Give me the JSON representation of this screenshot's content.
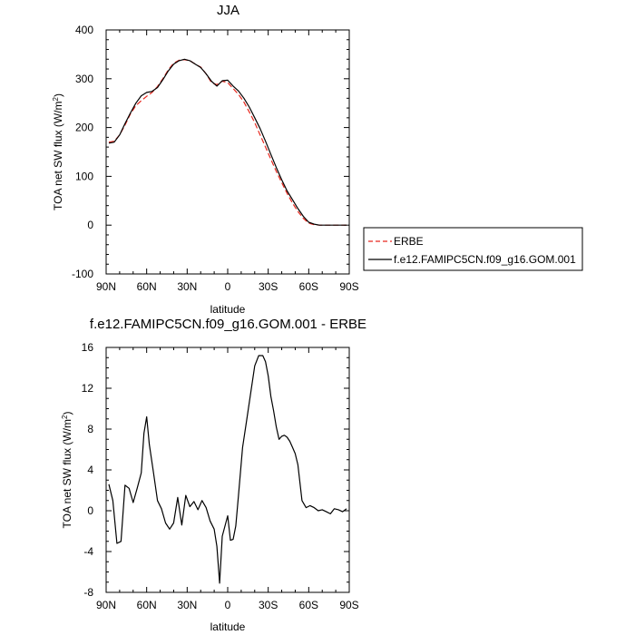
{
  "colors": {
    "erbe": "#e8281e",
    "model": "#000000",
    "axis": "#000000",
    "legend_border": "#000000"
  },
  "chart_data": [
    {
      "type": "line",
      "title": "JJA",
      "xlabel": "latitude",
      "ylabel": "TOA net SW flux (W/m",
      "ylabel_sup": "2",
      "ylabel_close": ")",
      "xlim": [
        90,
        -90
      ],
      "ylim": [
        -100,
        400
      ],
      "xticks": [
        90,
        60,
        30,
        0,
        -30,
        -60,
        -90
      ],
      "xtick_labels": [
        "90N",
        "60N",
        "30N",
        "0",
        "30S",
        "60S",
        "90S"
      ],
      "yticks": [
        -100,
        0,
        100,
        200,
        300,
        400
      ],
      "ytick_labels": [
        "-100",
        "0",
        "100",
        "200",
        "300",
        "400"
      ],
      "legend_position": "right-bottom",
      "series": [
        {
          "name": "ERBE",
          "style": "dashed",
          "x": [
            88,
            84,
            80,
            76,
            72,
            68,
            64,
            60,
            56,
            52,
            48,
            44,
            40,
            36,
            32,
            28,
            24,
            20,
            16,
            12,
            8,
            4,
            0,
            -4,
            -8,
            -12,
            -16,
            -20,
            -24,
            -28,
            -32,
            -36,
            -40,
            -44,
            -48,
            -52,
            -56,
            -60,
            -64,
            -68,
            -72,
            -76,
            -80,
            -84,
            -88
          ],
          "y": [
            170,
            172,
            185,
            205,
            228,
            245,
            255,
            264,
            272,
            284,
            300,
            318,
            332,
            338,
            339,
            337,
            330,
            324,
            310,
            292,
            288,
            295,
            292,
            280,
            268,
            252,
            232,
            210,
            185,
            160,
            135,
            110,
            87,
            65,
            45,
            28,
            14,
            4,
            1,
            0,
            0,
            0,
            0,
            0,
            0
          ]
        },
        {
          "name": "f.e12.FAMIPC5CN.f09_g16.GOM.001",
          "style": "solid",
          "x": [
            88,
            84,
            80,
            76,
            72,
            68,
            64,
            60,
            56,
            52,
            48,
            44,
            40,
            36,
            32,
            28,
            24,
            20,
            16,
            12,
            8,
            4,
            0,
            -4,
            -8,
            -12,
            -16,
            -20,
            -24,
            -28,
            -32,
            -36,
            -40,
            -44,
            -48,
            -52,
            -56,
            -60,
            -64,
            -68,
            -72,
            -76,
            -80,
            -84,
            -88
          ],
          "y": [
            168,
            170,
            185,
            208,
            230,
            250,
            265,
            272,
            274,
            282,
            298,
            316,
            330,
            337,
            340,
            337,
            330,
            323,
            310,
            295,
            285,
            296,
            297,
            285,
            275,
            260,
            242,
            220,
            198,
            172,
            145,
            118,
            93,
            70,
            52,
            34,
            18,
            6,
            2,
            0,
            0,
            0,
            0,
            0,
            0
          ]
        }
      ]
    },
    {
      "type": "line",
      "title": "f.e12.FAMIPC5CN.f09_g16.GOM.001 - ERBE",
      "xlabel": "latitude",
      "ylabel": "TOA net SW flux (W/m",
      "ylabel_sup": "2",
      "ylabel_close": ")",
      "xlim": [
        90,
        -90
      ],
      "ylim": [
        -8,
        16
      ],
      "xticks": [
        90,
        60,
        30,
        0,
        -30,
        -60,
        -90
      ],
      "xtick_labels": [
        "90N",
        "60N",
        "30N",
        "0",
        "30S",
        "60S",
        "90S"
      ],
      "yticks": [
        -8,
        -4,
        0,
        4,
        8,
        12,
        16
      ],
      "ytick_labels": [
        "-8",
        "-4",
        "0",
        "4",
        "8",
        "12",
        "16"
      ],
      "series": [
        {
          "x": [
            88,
            85,
            82,
            79,
            76,
            73,
            70,
            67,
            64,
            62,
            60,
            58,
            55,
            52,
            49,
            46,
            43,
            40,
            37,
            34,
            31,
            28,
            25,
            22,
            19,
            16,
            13,
            10,
            8,
            6,
            4,
            2,
            0,
            -2,
            -4,
            -6,
            -8,
            -11,
            -14,
            -17,
            -20,
            -23,
            -26,
            -28,
            -30,
            -32,
            -34,
            -36,
            -38,
            -40,
            -42,
            -44,
            -46,
            -48,
            -50,
            -52,
            -55,
            -58,
            -61,
            -64,
            -67,
            -70,
            -73,
            -76,
            -79,
            -82,
            -85,
            -88
          ],
          "y": [
            2.6,
            1.0,
            -3.2,
            -3.0,
            2.5,
            2.2,
            0.8,
            2.2,
            3.7,
            7.6,
            9.2,
            6.5,
            3.8,
            1.0,
            0.2,
            -1.2,
            -1.8,
            -1.2,
            1.3,
            -1.4,
            1.5,
            0.4,
            0.9,
            0.1,
            1.0,
            0.3,
            -1.0,
            -1.8,
            -3.5,
            -7.1,
            -2.5,
            -1.5,
            -0.5,
            -2.9,
            -2.8,
            -1.5,
            1.5,
            6.2,
            8.8,
            11.5,
            14.2,
            15.2,
            15.2,
            14.6,
            13.2,
            11.2,
            9.8,
            8.2,
            7.0,
            7.3,
            7.4,
            7.2,
            6.8,
            6.2,
            5.6,
            4.5,
            1.0,
            0.3,
            0.5,
            0.3,
            0.0,
            0.1,
            -0.1,
            -0.3,
            0.2,
            0.1,
            -0.1,
            0.2
          ]
        }
      ]
    }
  ]
}
